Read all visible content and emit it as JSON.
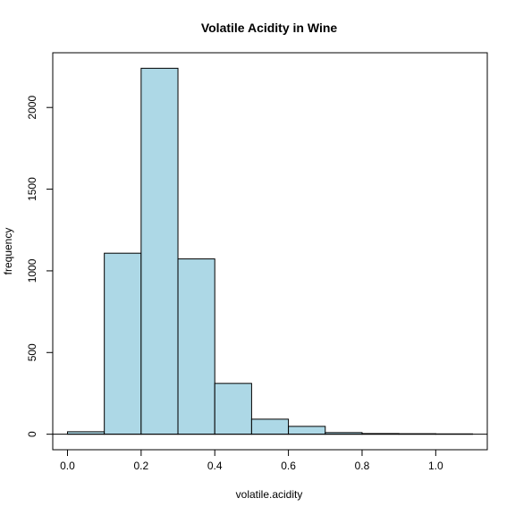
{
  "chart_data": {
    "type": "bar",
    "title": "Volatile Acidity in Wine",
    "xlabel": "volatile.acidity",
    "ylabel": "frequency",
    "bins": [
      {
        "x0": 0.0,
        "x1": 0.1,
        "count": 15
      },
      {
        "x0": 0.1,
        "x1": 0.2,
        "count": 1108
      },
      {
        "x0": 0.2,
        "x1": 0.3,
        "count": 2240
      },
      {
        "x0": 0.3,
        "x1": 0.4,
        "count": 1073
      },
      {
        "x0": 0.4,
        "x1": 0.5,
        "count": 311
      },
      {
        "x0": 0.5,
        "x1": 0.6,
        "count": 92
      },
      {
        "x0": 0.6,
        "x1": 0.7,
        "count": 48
      },
      {
        "x0": 0.7,
        "x1": 0.8,
        "count": 10
      },
      {
        "x0": 0.8,
        "x1": 0.9,
        "count": 4
      },
      {
        "x0": 0.9,
        "x1": 1.0,
        "count": 3
      },
      {
        "x0": 1.0,
        "x1": 1.1,
        "count": 2
      }
    ],
    "xlim": [
      -0.04,
      1.14
    ],
    "ylim": [
      -95,
      2335
    ],
    "xticks": [
      0.0,
      0.2,
      0.4,
      0.6,
      0.8,
      1.0
    ],
    "xtick_labels": [
      "0.0",
      "0.2",
      "0.4",
      "0.6",
      "0.8",
      "1.0"
    ],
    "yticks": [
      0,
      500,
      1000,
      1500,
      2000
    ],
    "ytick_labels": [
      "0",
      "500",
      "1000",
      "1500",
      "2000"
    ],
    "bar_color": "#add8e6",
    "grid": false,
    "baseline": 0
  }
}
